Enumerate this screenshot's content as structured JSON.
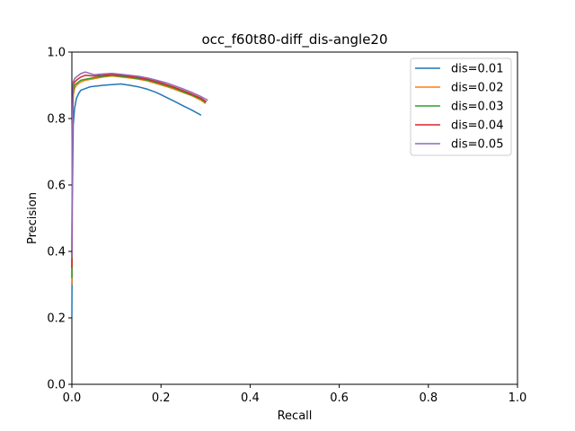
{
  "chart_data": {
    "type": "line",
    "title": "occ_f60t80-diff_dis-angle20",
    "xlabel": "Recall",
    "ylabel": "Precision",
    "xlim": [
      0,
      1
    ],
    "ylim": [
      0,
      1
    ],
    "xticks": [
      "0.0",
      "0.2",
      "0.4",
      "0.6",
      "0.8",
      "1.0"
    ],
    "yticks": [
      "0.0",
      "0.2",
      "0.4",
      "0.6",
      "0.8",
      "1.0"
    ],
    "grid": false,
    "legend_position": "top-right",
    "series": [
      {
        "name": "dis=0.01",
        "color": "#1f77b4",
        "x": [
          0.0,
          0.001,
          0.003,
          0.006,
          0.01,
          0.015,
          0.02,
          0.03,
          0.04,
          0.05,
          0.07,
          0.09,
          0.11,
          0.13,
          0.15,
          0.17,
          0.19,
          0.21,
          0.23,
          0.25,
          0.27,
          0.29
        ],
        "y": [
          0.2,
          0.55,
          0.78,
          0.83,
          0.86,
          0.875,
          0.885,
          0.89,
          0.895,
          0.897,
          0.9,
          0.902,
          0.904,
          0.9,
          0.895,
          0.888,
          0.878,
          0.865,
          0.852,
          0.838,
          0.825,
          0.81
        ]
      },
      {
        "name": "dis=0.02",
        "color": "#ff7f0e",
        "x": [
          0.0,
          0.001,
          0.003,
          0.006,
          0.01,
          0.015,
          0.02,
          0.03,
          0.05,
          0.07,
          0.09,
          0.11,
          0.13,
          0.15,
          0.17,
          0.19,
          0.21,
          0.23,
          0.25,
          0.27,
          0.29,
          0.3
        ],
        "y": [
          0.3,
          0.7,
          0.87,
          0.89,
          0.9,
          0.905,
          0.91,
          0.915,
          0.92,
          0.925,
          0.928,
          0.925,
          0.922,
          0.918,
          0.913,
          0.905,
          0.897,
          0.888,
          0.878,
          0.868,
          0.855,
          0.845
        ]
      },
      {
        "name": "dis=0.03",
        "color": "#2ca02c",
        "x": [
          0.0,
          0.001,
          0.003,
          0.006,
          0.01,
          0.015,
          0.02,
          0.03,
          0.05,
          0.07,
          0.09,
          0.11,
          0.13,
          0.15,
          0.17,
          0.19,
          0.21,
          0.23,
          0.25,
          0.27,
          0.29,
          0.3
        ],
        "y": [
          0.32,
          0.72,
          0.88,
          0.9,
          0.905,
          0.91,
          0.915,
          0.918,
          0.923,
          0.927,
          0.93,
          0.927,
          0.924,
          0.92,
          0.915,
          0.908,
          0.9,
          0.891,
          0.88,
          0.87,
          0.858,
          0.848
        ]
      },
      {
        "name": "dis=0.04",
        "color": "#d62728",
        "x": [
          0.0,
          0.001,
          0.003,
          0.006,
          0.01,
          0.015,
          0.02,
          0.03,
          0.05,
          0.07,
          0.09,
          0.11,
          0.13,
          0.15,
          0.17,
          0.19,
          0.21,
          0.23,
          0.25,
          0.27,
          0.29,
          0.302
        ],
        "y": [
          0.35,
          0.75,
          0.9,
          0.91,
          0.915,
          0.92,
          0.925,
          0.93,
          0.928,
          0.93,
          0.933,
          0.93,
          0.927,
          0.923,
          0.918,
          0.911,
          0.903,
          0.894,
          0.884,
          0.873,
          0.861,
          0.85
        ]
      },
      {
        "name": "dis=0.05",
        "color": "#9467bd",
        "x": [
          0.0,
          0.001,
          0.003,
          0.006,
          0.01,
          0.015,
          0.02,
          0.03,
          0.05,
          0.07,
          0.09,
          0.11,
          0.13,
          0.15,
          0.17,
          0.19,
          0.21,
          0.23,
          0.25,
          0.27,
          0.29,
          0.305
        ],
        "y": [
          0.38,
          0.78,
          0.91,
          0.92,
          0.925,
          0.93,
          0.935,
          0.94,
          0.932,
          0.934,
          0.936,
          0.933,
          0.93,
          0.927,
          0.922,
          0.915,
          0.908,
          0.899,
          0.889,
          0.878,
          0.866,
          0.855
        ]
      }
    ]
  }
}
